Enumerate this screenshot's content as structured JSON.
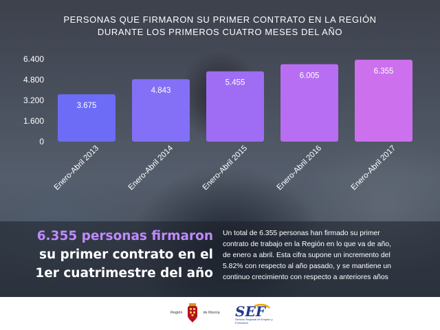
{
  "title_lines": [
    "PERSONAS QUE FIRMARON SU PRIMER CONTRATO EN LA REGIÓN",
    "DURANTE LOS PRIMEROS CUATRO MESES DEL AÑO"
  ],
  "headline": {
    "line1": "6.355 personas firmaron",
    "line2": "su primer contrato en el",
    "line3": "1er cuatrimestre del año"
  },
  "body_lines": [
    "Un total de 6.355 personas han firmado su primer",
    "contrato de trabajo en la Región en lo que va de año,",
    "de enero a abril. Esta cifra supone un incremento del",
    "5.82% con respecto al año pasado, y se mantiene un",
    "continuo crecimiento con respecto a anteriores años"
  ],
  "footer": {
    "region_logo_left": "Región",
    "region_logo_right": "de Murcia",
    "sef_logo": "SEF",
    "sef_subtitle": "Servicio Regional de Empleo y Formación"
  },
  "colors": {
    "bar_gradient": [
      "#6d6cf7",
      "#8370f6",
      "#9e6df4",
      "#b86ef2",
      "#cc70ee"
    ],
    "headline_accent": "#c08aff"
  },
  "chart_data": {
    "type": "bar",
    "categories": [
      "Enero-Abril 2013",
      "Enero-Abril 2014",
      "Enero-Abril 2015",
      "Enero-Abril 2016",
      "Enero-Abril 2017"
    ],
    "values": [
      3675,
      4843,
      5455,
      6005,
      6355
    ],
    "value_labels": [
      "3.675",
      "4.843",
      "5.455",
      "6.005",
      "6.355"
    ],
    "yticks": [
      0,
      1600,
      3200,
      4800,
      6400
    ],
    "ytick_labels": [
      "0",
      "1.600",
      "3.200",
      "4.800",
      "6.400"
    ],
    "ylim": [
      0,
      6400
    ],
    "title": "PERSONAS QUE FIRMARON SU PRIMER CONTRATO EN LA REGIÓN DURANTE LOS PRIMEROS CUATRO MESES DEL AÑO",
    "xlabel": "",
    "ylabel": "",
    "grid": false,
    "legend": "none"
  }
}
